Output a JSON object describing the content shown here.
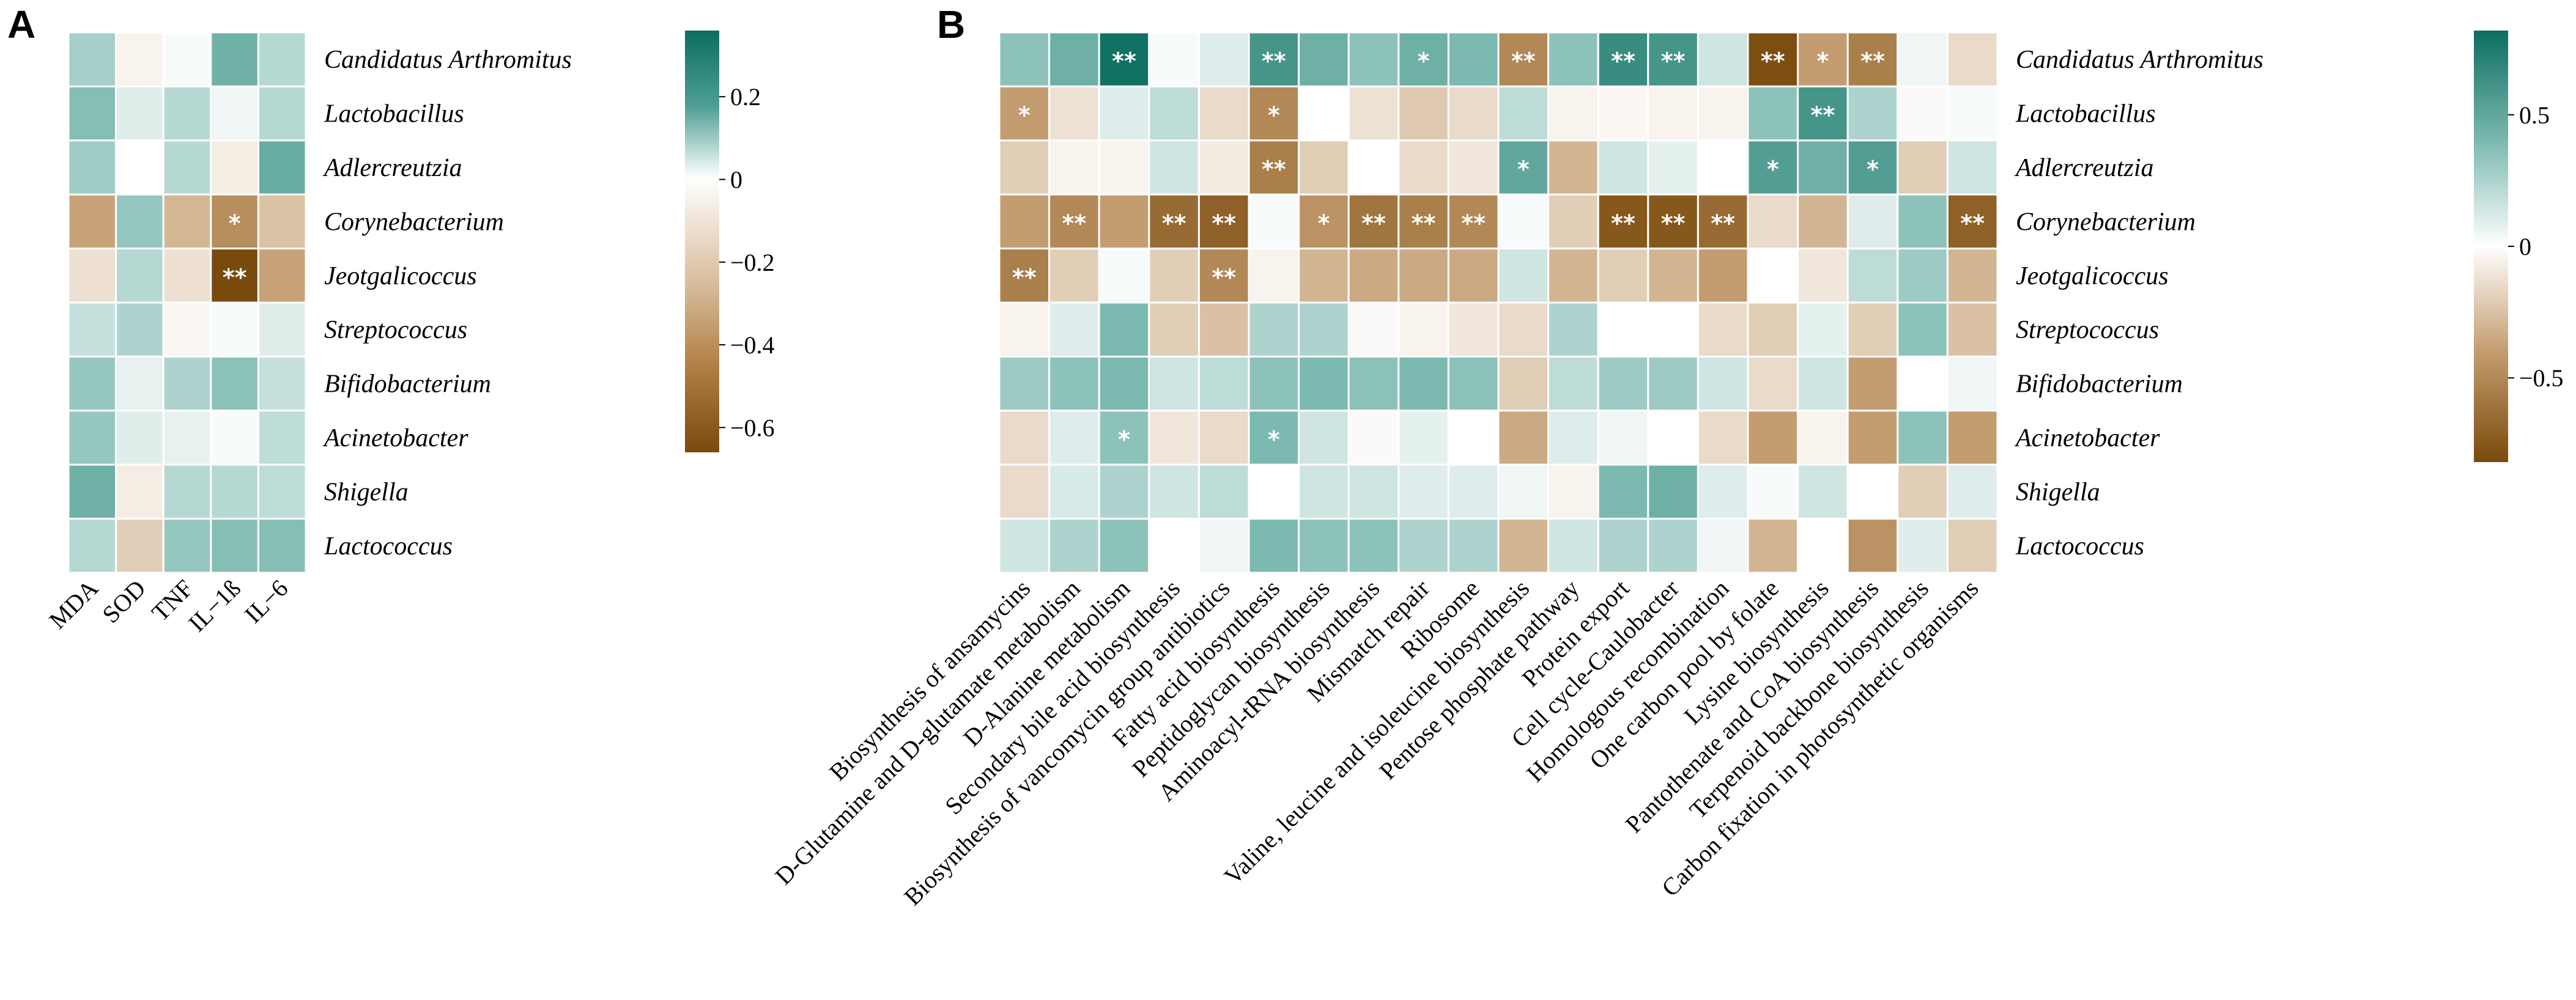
{
  "chart_data": [
    {
      "panel": "A",
      "type": "heatmap",
      "rows": [
        "Candidatus Arthromitus",
        "Lactobacillus",
        "Adlercreutzia",
        "Corynebacterium",
        "Jeotgalicoccus",
        "Streptococcus",
        "Bifidobacterium",
        "Acinetobacter",
        "Shigella",
        "Lactococcus"
      ],
      "columns": [
        "MDA",
        "SOD",
        "TNF",
        "IL−1ß",
        "IL−6"
      ],
      "values": [
        [
          0.22,
          -0.04,
          0.02,
          0.36,
          0.18
        ],
        [
          0.3,
          0.08,
          0.18,
          0.04,
          0.18
        ],
        [
          0.24,
          0.0,
          0.18,
          -0.06,
          0.38
        ],
        [
          -0.3,
          0.26,
          -0.24,
          -0.38,
          -0.2
        ],
        [
          -0.1,
          0.18,
          -0.1,
          -0.66,
          -0.3
        ],
        [
          0.14,
          0.2,
          -0.03,
          0.02,
          0.08
        ],
        [
          0.26,
          0.06,
          0.2,
          0.28,
          0.14
        ],
        [
          0.26,
          0.08,
          0.06,
          0.02,
          0.16
        ],
        [
          0.36,
          -0.06,
          0.18,
          0.18,
          0.16
        ],
        [
          0.18,
          -0.16,
          0.26,
          0.3,
          0.3
        ]
      ],
      "stars": [
        [
          "",
          "",
          "",
          "",
          ""
        ],
        [
          "",
          "",
          "",
          "",
          ""
        ],
        [
          "",
          "",
          "",
          "",
          ""
        ],
        [
          "",
          "",
          "",
          "*",
          ""
        ],
        [
          "",
          "",
          "",
          "**",
          ""
        ],
        [
          "",
          "",
          "",
          "",
          ""
        ],
        [
          "",
          "",
          "",
          "",
          ""
        ],
        [
          "",
          "",
          "",
          "",
          ""
        ],
        [
          "",
          "",
          "",
          "",
          ""
        ],
        [
          "",
          "",
          "",
          "",
          ""
        ]
      ],
      "colorbar": {
        "min": -0.66,
        "max": 0.36,
        "ticks": [
          0.2,
          0,
          -0.2,
          -0.4,
          -0.6
        ],
        "tick_labels": [
          "0.2",
          "0",
          "−0.2",
          "−0.4",
          "−0.6"
        ]
      }
    },
    {
      "panel": "B",
      "type": "heatmap",
      "rows": [
        "Candidatus Arthromitus",
        "Lactobacillus",
        "Adlercreutzia",
        "Corynebacterium",
        "Jeotgalicoccus",
        "Streptococcus",
        "Bifidobacterium",
        "Acinetobacter",
        "Shigella",
        "Lactococcus"
      ],
      "columns": [
        "Biosynthesis of ansamycins",
        "D-Glutamine and D-glutamate metabolism",
        "D-Alanine metabolism",
        "Secondary bile acid biosynthesis",
        "Biosynthesis of vancomycin group antibiotics",
        "Fatty acid biosynthesis",
        "Peptidoglycan biosynthesis",
        "Aminoacyl-tRNA biosynthesis",
        "Mismatch repair",
        "Ribosome",
        "Valine, leucine and isoleucine biosynthesis",
        "Pentose phosphate pathway",
        "Protein export",
        "Cell cycle-Caulobacter",
        "Homologous recombination",
        "One carbon pool by folate",
        "Lysine biosynthesis",
        "Pantothenate and CoA biosynthesis",
        "Terpenoid backbone biosynthesis",
        "Carbon fixation in photosynthetic organisms"
      ],
      "values": [
        [
          0.35,
          0.45,
          0.8,
          0.02,
          0.1,
          0.6,
          0.45,
          0.35,
          0.45,
          0.4,
          -0.5,
          0.35,
          0.65,
          0.6,
          0.15,
          -0.8,
          -0.4,
          -0.55,
          0.05,
          -0.15
        ],
        [
          -0.4,
          -0.12,
          0.1,
          0.2,
          -0.15,
          -0.5,
          0.0,
          -0.12,
          -0.22,
          -0.15,
          0.2,
          -0.05,
          -0.03,
          -0.05,
          -0.05,
          0.35,
          0.6,
          0.25,
          -0.02,
          0.02
        ],
        [
          -0.2,
          -0.05,
          -0.05,
          0.15,
          -0.08,
          -0.55,
          -0.2,
          0.0,
          -0.15,
          -0.1,
          0.5,
          -0.3,
          0.15,
          0.08,
          0.0,
          0.55,
          0.45,
          0.55,
          -0.2,
          0.15
        ],
        [
          -0.4,
          -0.5,
          -0.4,
          -0.65,
          -0.7,
          0.02,
          -0.45,
          -0.6,
          -0.55,
          -0.5,
          0.02,
          -0.2,
          -0.75,
          -0.75,
          -0.65,
          -0.15,
          -0.3,
          0.1,
          0.35,
          -0.7
        ],
        [
          -0.55,
          -0.2,
          0.02,
          -0.2,
          -0.5,
          -0.05,
          -0.3,
          -0.35,
          -0.35,
          -0.35,
          0.15,
          -0.3,
          -0.2,
          -0.3,
          -0.4,
          0.0,
          -0.1,
          0.2,
          0.3,
          -0.3
        ],
        [
          -0.05,
          0.1,
          0.4,
          -0.2,
          -0.25,
          0.25,
          0.25,
          -0.02,
          -0.05,
          -0.1,
          -0.15,
          0.25,
          0.0,
          0.0,
          -0.15,
          -0.2,
          0.08,
          -0.2,
          0.35,
          -0.25
        ],
        [
          0.3,
          0.35,
          0.4,
          0.15,
          0.2,
          0.35,
          0.4,
          0.35,
          0.4,
          0.35,
          -0.2,
          0.2,
          0.3,
          0.3,
          0.15,
          -0.15,
          0.15,
          -0.4,
          0.0,
          0.05
        ],
        [
          -0.15,
          0.1,
          0.35,
          -0.1,
          -0.15,
          0.4,
          0.15,
          -0.02,
          0.08,
          0.0,
          -0.35,
          0.1,
          0.05,
          0.0,
          -0.15,
          -0.4,
          -0.05,
          -0.4,
          0.35,
          -0.4
        ],
        [
          -0.15,
          0.12,
          0.25,
          0.15,
          0.2,
          0.0,
          0.15,
          0.15,
          0.1,
          0.1,
          0.05,
          -0.05,
          0.4,
          0.45,
          0.1,
          0.02,
          0.15,
          0.0,
          -0.2,
          0.1
        ],
        [
          0.15,
          0.25,
          0.35,
          0.0,
          0.05,
          0.4,
          0.35,
          0.35,
          0.25,
          0.25,
          -0.3,
          0.15,
          0.25,
          0.25,
          0.05,
          -0.3,
          0.0,
          -0.45,
          0.1,
          -0.2
        ]
      ],
      "stars": [
        [
          "",
          "",
          "**",
          "",
          "",
          "**",
          "",
          "",
          "*",
          "",
          "**",
          "",
          "**",
          "**",
          "",
          "**",
          "*",
          "**",
          "",
          ""
        ],
        [
          "*",
          "",
          "",
          "",
          "",
          "*",
          "",
          "",
          "",
          "",
          "",
          "",
          "",
          "",
          "",
          "",
          "**",
          "",
          "",
          ""
        ],
        [
          "",
          "",
          "",
          "",
          "",
          "**",
          "",
          "",
          "",
          "",
          "*",
          "",
          "",
          "",
          "",
          "*",
          "",
          "*",
          "",
          ""
        ],
        [
          "",
          "**",
          "",
          "**",
          "**",
          "",
          "*",
          "**",
          "**",
          "**",
          "",
          "",
          "**",
          "**",
          "**",
          "",
          "",
          "",
          "",
          "**"
        ],
        [
          "**",
          "",
          "",
          "",
          "**",
          "",
          "",
          "",
          "",
          "",
          "",
          "",
          "",
          "",
          "",
          "",
          "",
          "",
          "",
          ""
        ],
        [
          "",
          "",
          "",
          "",
          "",
          "",
          "",
          "",
          "",
          "",
          "",
          "",
          "",
          "",
          "",
          "",
          "",
          "",
          "",
          ""
        ],
        [
          "",
          "",
          "",
          "",
          "",
          "",
          "",
          "",
          "",
          "",
          "",
          "",
          "",
          "",
          "",
          "",
          "",
          "",
          "",
          ""
        ],
        [
          "",
          "",
          "*",
          "",
          "",
          "*",
          "",
          "",
          "",
          "",
          "",
          "",
          "",
          "",
          "",
          "",
          "",
          "",
          "",
          ""
        ],
        [
          "",
          "",
          "",
          "",
          "",
          "",
          "",
          "",
          "",
          "",
          "",
          "",
          "",
          "",
          "",
          "",
          "",
          "",
          "",
          ""
        ],
        [
          "",
          "",
          "",
          "",
          "",
          "",
          "",
          "",
          "",
          "",
          "",
          "",
          "",
          "",
          "",
          "",
          "",
          "",
          "",
          ""
        ]
      ],
      "colorbar": {
        "min": -0.82,
        "max": 0.82,
        "ticks": [
          0.5,
          0,
          -0.5
        ],
        "tick_labels": [
          "0.5",
          "0",
          "−0.5"
        ]
      }
    }
  ],
  "colors": {
    "high": "#0b6e5f",
    "mid": "#ffffff",
    "low": "#7a4a0c",
    "high_mid": "#79b7ae",
    "low_mid": "#c29a6c"
  }
}
